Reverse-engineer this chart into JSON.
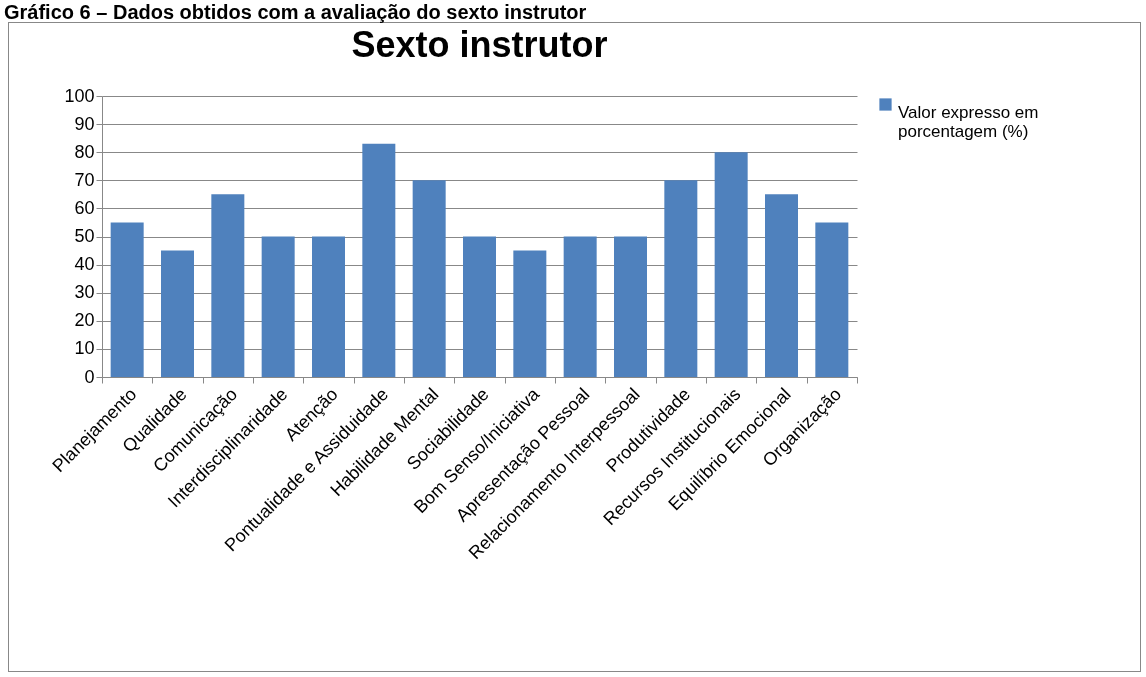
{
  "chart_data": {
    "type": "bar",
    "title": "Sexto instrutor",
    "annotations": [
      "Gráfico 6 – Dados obtidos com a avaliação do sexto instrutor"
    ],
    "categories": [
      "Planejamento",
      "Qualidade",
      "Comunicação",
      "Interdisciplinaridade",
      "Atenção",
      "Pontualidade e Assiduidade",
      "Habilidade Mental",
      "Sociabilidade",
      "Bom Senso/Iniciativa",
      "Apresentação Pessoal",
      "Relacionamento Interpessoal",
      "Produtividade",
      "Recursos Institucionais",
      "Equilíbrio Emocional",
      "Organização"
    ],
    "series": [
      {
        "name": "Valor expresso em porcentagem (%)",
        "color": "#4f81bd",
        "values": [
          55,
          45,
          65,
          50,
          50,
          83,
          70,
          50,
          45,
          50,
          50,
          70,
          80,
          65,
          55
        ]
      }
    ],
    "ylim": [
      0,
      100
    ],
    "yticks": [
      0,
      10,
      20,
      30,
      40,
      50,
      60,
      70,
      80,
      90,
      100
    ],
    "grid": "y",
    "legend": "right"
  }
}
